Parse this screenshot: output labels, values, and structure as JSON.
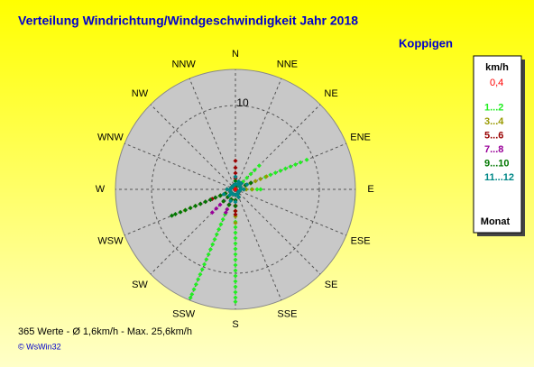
{
  "chart_data": {
    "type": "polar-scatter",
    "title": "Verteilung Windrichtung/Windgeschwindigkeit  Jahr 2018",
    "location": "Koppigen",
    "legend_title": "km/h",
    "legend_footer": "Monat",
    "footer": "365 Werte   -   Ø 1,6km/h  -  Max. 25,6km/h",
    "credit": "© WsWin32",
    "categories": [
      "N",
      "NNE",
      "NE",
      "ENE",
      "E",
      "ESE",
      "SE",
      "SSE",
      "S",
      "SSW",
      "SW",
      "WSW",
      "W",
      "WNW",
      "NW",
      "NNW"
    ],
    "rlim": [
      0,
      14.3
    ],
    "rticks": [
      10
    ],
    "grid": true,
    "series": [
      {
        "name": "0,4",
        "color": "#ff0000",
        "values": [
          0.5,
          0,
          0,
          0,
          0,
          0,
          0,
          0,
          0,
          0,
          0,
          0,
          0,
          0,
          0,
          0
        ]
      },
      {
        "name": "1...2",
        "color": "#22ee22",
        "values": [
          1,
          0.5,
          4,
          9.2,
          3,
          0.5,
          0.5,
          1,
          13.4,
          14,
          1,
          2,
          1,
          0.5,
          0.5,
          0.5
        ]
      },
      {
        "name": "3...4",
        "color": "#999900",
        "values": [
          1.5,
          0.5,
          1,
          4,
          2,
          0.5,
          0.5,
          1,
          4,
          2,
          2,
          6.5,
          1,
          0.5,
          0.5,
          0.5
        ]
      },
      {
        "name": "5...6",
        "color": "#990000",
        "values": [
          3.4,
          1,
          1,
          2,
          1,
          0.5,
          0.5,
          1,
          3,
          2,
          2,
          3,
          1,
          0.5,
          0.5,
          0.5
        ]
      },
      {
        "name": "7...8",
        "color": "#990099",
        "values": [
          1.5,
          0.5,
          1,
          2,
          1,
          0.5,
          0.5,
          1,
          2,
          3,
          3.9,
          4.5,
          1,
          0.5,
          0.5,
          0.5
        ]
      },
      {
        "name": "9...10",
        "color": "#007700",
        "values": [
          1,
          0.5,
          1,
          2,
          1,
          0.5,
          0.5,
          1,
          2,
          2,
          2,
          8.2,
          1,
          0.5,
          0.5,
          0.5
        ]
      },
      {
        "name": "11...12",
        "color": "#008888",
        "values": [
          1.5,
          1,
          1,
          1.5,
          1,
          0.5,
          0.5,
          1,
          1.5,
          1.5,
          1,
          1.5,
          1,
          0.5,
          0.5,
          0.5
        ]
      }
    ]
  }
}
